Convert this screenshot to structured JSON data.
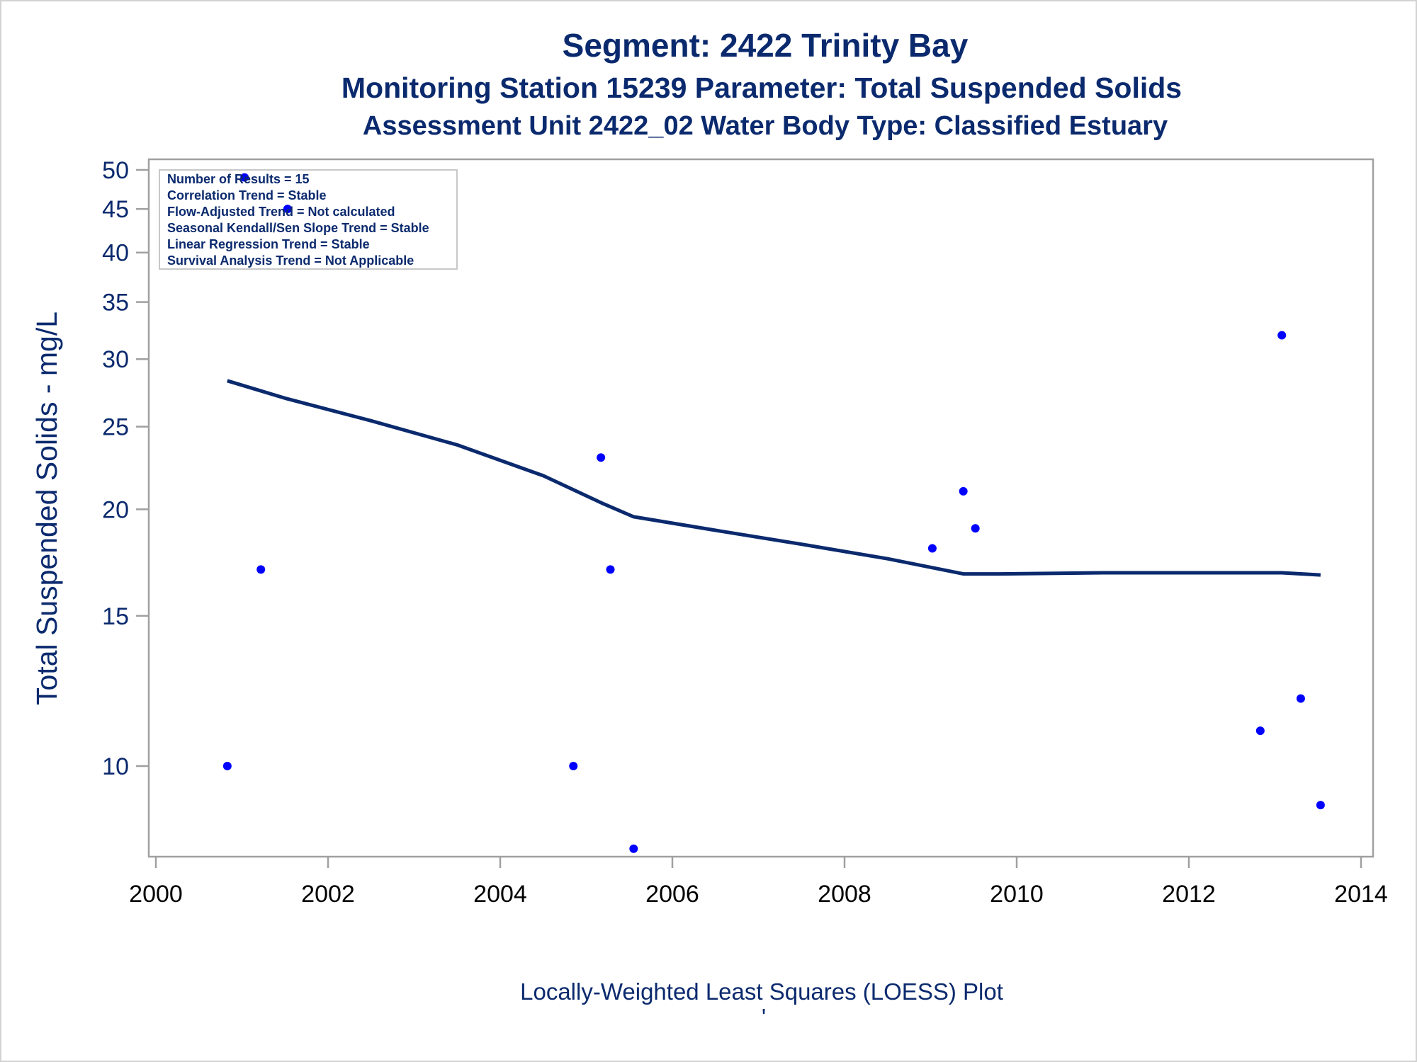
{
  "chart_data": {
    "type": "scatter",
    "title": "Segment: 2422  Trinity Bay",
    "subtitle": "Monitoring Station 15239 Parameter: Total Suspended Solids",
    "subtitle2": "Assessment Unit 2422_02   Water Body Type: Classified Estuary",
    "xlabel": "",
    "ylabel": "Total Suspended Solids - mg/L",
    "footnote": "Locally-Weighted Least Squares (LOESS) Plot",
    "footnote_mark": "'",
    "y_scale": "log",
    "xlim": [
      2000,
      2014
    ],
    "ylim": [
      7.8,
      50
    ],
    "x_ticks": [
      2000,
      2002,
      2004,
      2006,
      2008,
      2010,
      2012,
      2014
    ],
    "y_ticks": [
      10,
      15,
      20,
      25,
      30,
      35,
      40,
      45,
      50
    ],
    "grid": false,
    "legend_placement": "top-left",
    "stats_box": [
      "Number of Results = 15",
      "Correlation Trend = Stable",
      "Flow-Adjusted Trend = Not calculated",
      "Seasonal Kendall/Sen Slope Trend = Stable",
      "Linear Regression Trend = Stable",
      "Survival Analysis Trend = Not Applicable"
    ],
    "points": [
      {
        "x": 2000.83,
        "y": 10
      },
      {
        "x": 2001.03,
        "y": 49
      },
      {
        "x": 2001.22,
        "y": 17
      },
      {
        "x": 2001.53,
        "y": 45
      },
      {
        "x": 2004.85,
        "y": 10
      },
      {
        "x": 2005.17,
        "y": 23
      },
      {
        "x": 2005.28,
        "y": 17
      },
      {
        "x": 2005.55,
        "y": 8
      },
      {
        "x": 2009.02,
        "y": 18
      },
      {
        "x": 2009.38,
        "y": 21
      },
      {
        "x": 2009.52,
        "y": 19
      },
      {
        "x": 2012.83,
        "y": 11
      },
      {
        "x": 2013.08,
        "y": 32
      },
      {
        "x": 2013.3,
        "y": 12
      },
      {
        "x": 2013.53,
        "y": 9
      }
    ],
    "loess": [
      {
        "x": 2000.83,
        "y": 28.3
      },
      {
        "x": 2001.5,
        "y": 27.0
      },
      {
        "x": 2002.5,
        "y": 25.4
      },
      {
        "x": 2003.5,
        "y": 23.8
      },
      {
        "x": 2004.5,
        "y": 21.9
      },
      {
        "x": 2005.2,
        "y": 20.3
      },
      {
        "x": 2005.55,
        "y": 19.6
      },
      {
        "x": 2006.5,
        "y": 18.9
      },
      {
        "x": 2007.5,
        "y": 18.2
      },
      {
        "x": 2008.5,
        "y": 17.5
      },
      {
        "x": 2009.0,
        "y": 17.1
      },
      {
        "x": 2009.38,
        "y": 16.8
      },
      {
        "x": 2009.8,
        "y": 16.8
      },
      {
        "x": 2011.0,
        "y": 16.85
      },
      {
        "x": 2012.0,
        "y": 16.85
      },
      {
        "x": 2013.08,
        "y": 16.85
      },
      {
        "x": 2013.53,
        "y": 16.75
      }
    ],
    "colors": {
      "text": "#0b2a6e",
      "points": "#0000ff",
      "loess": "#0b2a6e",
      "axis": "#a0a0a0"
    }
  }
}
